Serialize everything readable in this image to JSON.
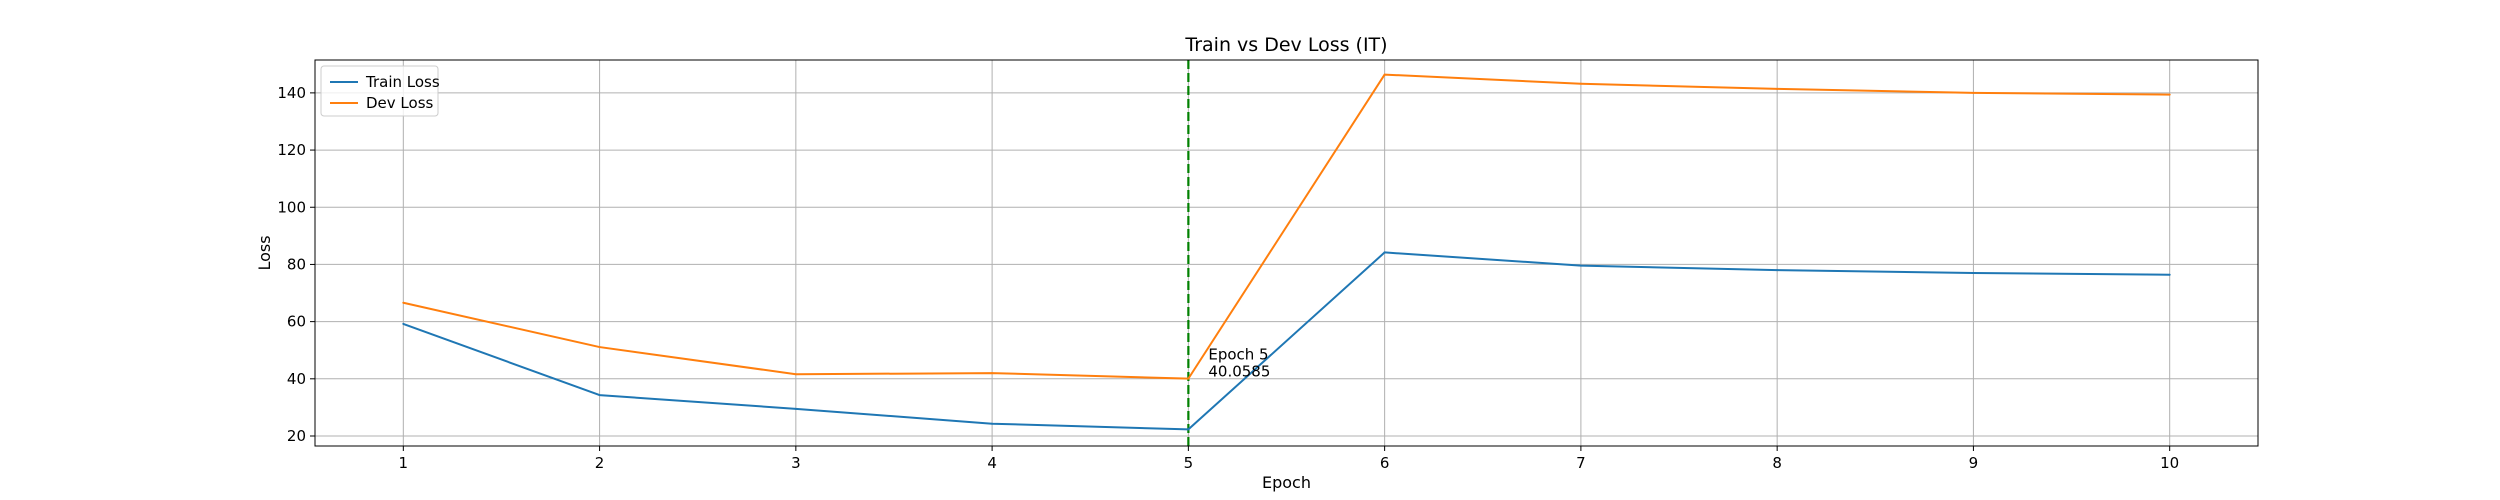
{
  "chart_data": {
    "type": "line",
    "title": "Train vs Dev Loss (IT)",
    "xlabel": "Epoch",
    "ylabel": "Loss",
    "x": [
      1,
      2,
      3,
      4,
      5,
      6,
      7,
      8,
      9,
      10
    ],
    "xlim": [
      0.55,
      10.45
    ],
    "ylim": [
      16.5,
      151.5
    ],
    "xticks": [
      1,
      2,
      3,
      4,
      5,
      6,
      7,
      8,
      9,
      10
    ],
    "yticks": [
      20,
      40,
      60,
      80,
      100,
      120,
      140
    ],
    "grid": true,
    "legend_position": "top-left",
    "series": [
      {
        "name": "Train Loss",
        "color": "#1f77b4",
        "values": [
          59.2,
          34.3,
          29.5,
          24.3,
          22.3,
          84.2,
          79.6,
          78.0,
          77.0,
          76.4
        ]
      },
      {
        "name": "Dev Loss",
        "color": "#ff7f0e",
        "values": [
          66.6,
          51.1,
          41.6,
          42.0,
          40.0585,
          146.4,
          143.2,
          141.4,
          140.0,
          139.4
        ]
      }
    ],
    "reference_line": {
      "x": 5,
      "color": "#008000",
      "style": "dashed"
    },
    "annotation": {
      "line1": "Epoch 5",
      "line2": "40.0585",
      "x": 5,
      "y": 40.0585
    }
  }
}
